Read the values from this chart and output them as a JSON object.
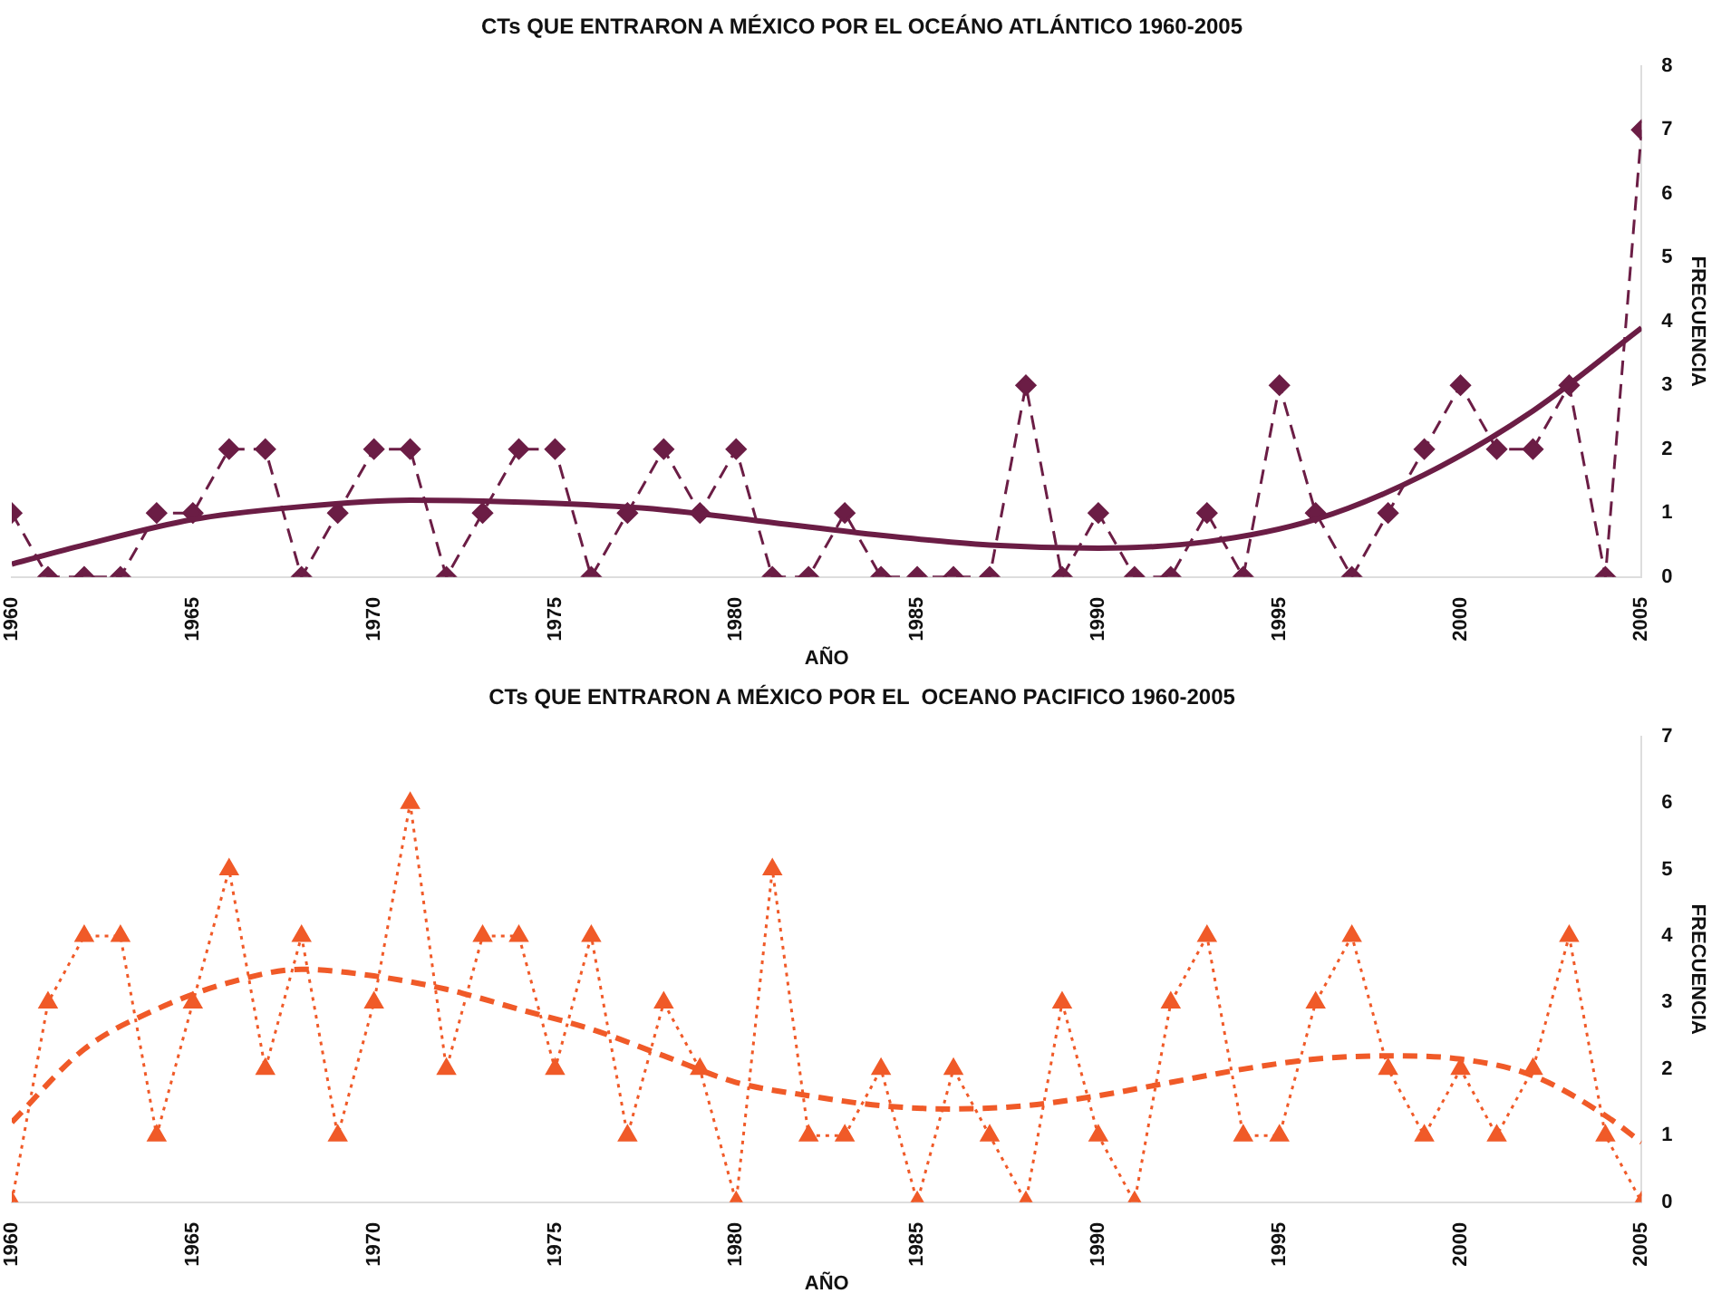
{
  "chart_data": [
    {
      "type": "line",
      "title": "CTs QUE ENTRARON A MÉXICO POR EL OCEÁNO ATLÁNTICO 1960-2005",
      "xlabel": "AÑO",
      "ylabel": "FRECUENCIA",
      "x": [
        1960,
        1961,
        1962,
        1963,
        1964,
        1965,
        1966,
        1967,
        1968,
        1969,
        1970,
        1971,
        1972,
        1973,
        1974,
        1975,
        1976,
        1977,
        1978,
        1979,
        1980,
        1981,
        1982,
        1983,
        1984,
        1985,
        1986,
        1987,
        1988,
        1989,
        1990,
        1991,
        1992,
        1993,
        1994,
        1995,
        1996,
        1997,
        1998,
        1999,
        2000,
        2001,
        2002,
        2003,
        2004,
        2005
      ],
      "xlim": [
        1960,
        2005
      ],
      "xticks": [
        1960,
        1965,
        1970,
        1975,
        1980,
        1985,
        1990,
        1995,
        2000,
        2005
      ],
      "ylim": [
        0,
        8
      ],
      "yticks": [
        0,
        1,
        2,
        3,
        4,
        5,
        6,
        7,
        8
      ],
      "grid": false,
      "legend": false,
      "series": [
        {
          "color": "#6b1d45",
          "marker": "diamond",
          "line_style": "dashed",
          "values": [
            1,
            0,
            0,
            0,
            1,
            1,
            2,
            2,
            0,
            1,
            2,
            2,
            0,
            1,
            2,
            2,
            0,
            1,
            2,
            1,
            2,
            0,
            0,
            1,
            0,
            0,
            0,
            0,
            3,
            0,
            1,
            0,
            0,
            1,
            0,
            3,
            1,
            0,
            1,
            2,
            3,
            2,
            2,
            3,
            0,
            7
          ]
        },
        {
          "type": "line",
          "color": "#6b1d45",
          "marker": "none",
          "line_style": "solid",
          "x": [
            1960,
            1962,
            1965,
            1968,
            1971,
            1975,
            1978,
            1981,
            1984,
            1987,
            1990,
            1993,
            1996,
            1999,
            2002,
            2005
          ],
          "values": [
            0.2,
            0.5,
            0.9,
            1.1,
            1.2,
            1.15,
            1.05,
            0.85,
            0.65,
            0.5,
            0.45,
            0.55,
            0.9,
            1.6,
            2.6,
            3.9
          ]
        }
      ]
    },
    {
      "type": "line",
      "title": "CTs QUE ENTRARON A MÉXICO POR EL  OCEANO PACIFICO 1960-2005",
      "xlabel": "AÑO",
      "ylabel": "FRECUENCIA",
      "x": [
        1960,
        1961,
        1962,
        1963,
        1964,
        1965,
        1966,
        1967,
        1968,
        1969,
        1970,
        1971,
        1972,
        1973,
        1974,
        1975,
        1976,
        1977,
        1978,
        1979,
        1980,
        1981,
        1982,
        1983,
        1984,
        1985,
        1986,
        1987,
        1988,
        1989,
        1990,
        1991,
        1992,
        1993,
        1994,
        1995,
        1996,
        1997,
        1998,
        1999,
        2000,
        2001,
        2002,
        2003,
        2004,
        2005
      ],
      "xlim": [
        1960,
        2005
      ],
      "xticks": [
        1960,
        1965,
        1970,
        1975,
        1980,
        1985,
        1990,
        1995,
        2000,
        2005
      ],
      "ylim": [
        0,
        7
      ],
      "yticks": [
        0,
        1,
        2,
        3,
        4,
        5,
        6,
        7
      ],
      "grid": false,
      "legend": false,
      "series": [
        {
          "color": "#f05a28",
          "marker": "triangle",
          "line_style": "dotted",
          "values": [
            0,
            3,
            4,
            4,
            1,
            3,
            5,
            2,
            4,
            1,
            3,
            6,
            2,
            4,
            4,
            2,
            4,
            1,
            3,
            2,
            0,
            5,
            1,
            1,
            2,
            0,
            2,
            1,
            0,
            3,
            1,
            0,
            3,
            4,
            1,
            1,
            3,
            4,
            2,
            1,
            2,
            1,
            2,
            4,
            1,
            0
          ]
        },
        {
          "type": "line",
          "color": "#f05a28",
          "marker": "none",
          "line_style": "dashed",
          "x": [
            1960,
            1962,
            1964,
            1966,
            1968,
            1970,
            1972,
            1974,
            1976,
            1978,
            1980,
            1982,
            1984,
            1986,
            1988,
            1990,
            1992,
            1994,
            1996,
            1998,
            2000,
            2002,
            2004,
            2005
          ],
          "values": [
            1.2,
            2.3,
            2.9,
            3.3,
            3.5,
            3.4,
            3.2,
            2.9,
            2.6,
            2.2,
            1.8,
            1.6,
            1.45,
            1.4,
            1.45,
            1.6,
            1.8,
            2.0,
            2.15,
            2.2,
            2.15,
            1.9,
            1.3,
            0.9
          ]
        }
      ]
    }
  ]
}
